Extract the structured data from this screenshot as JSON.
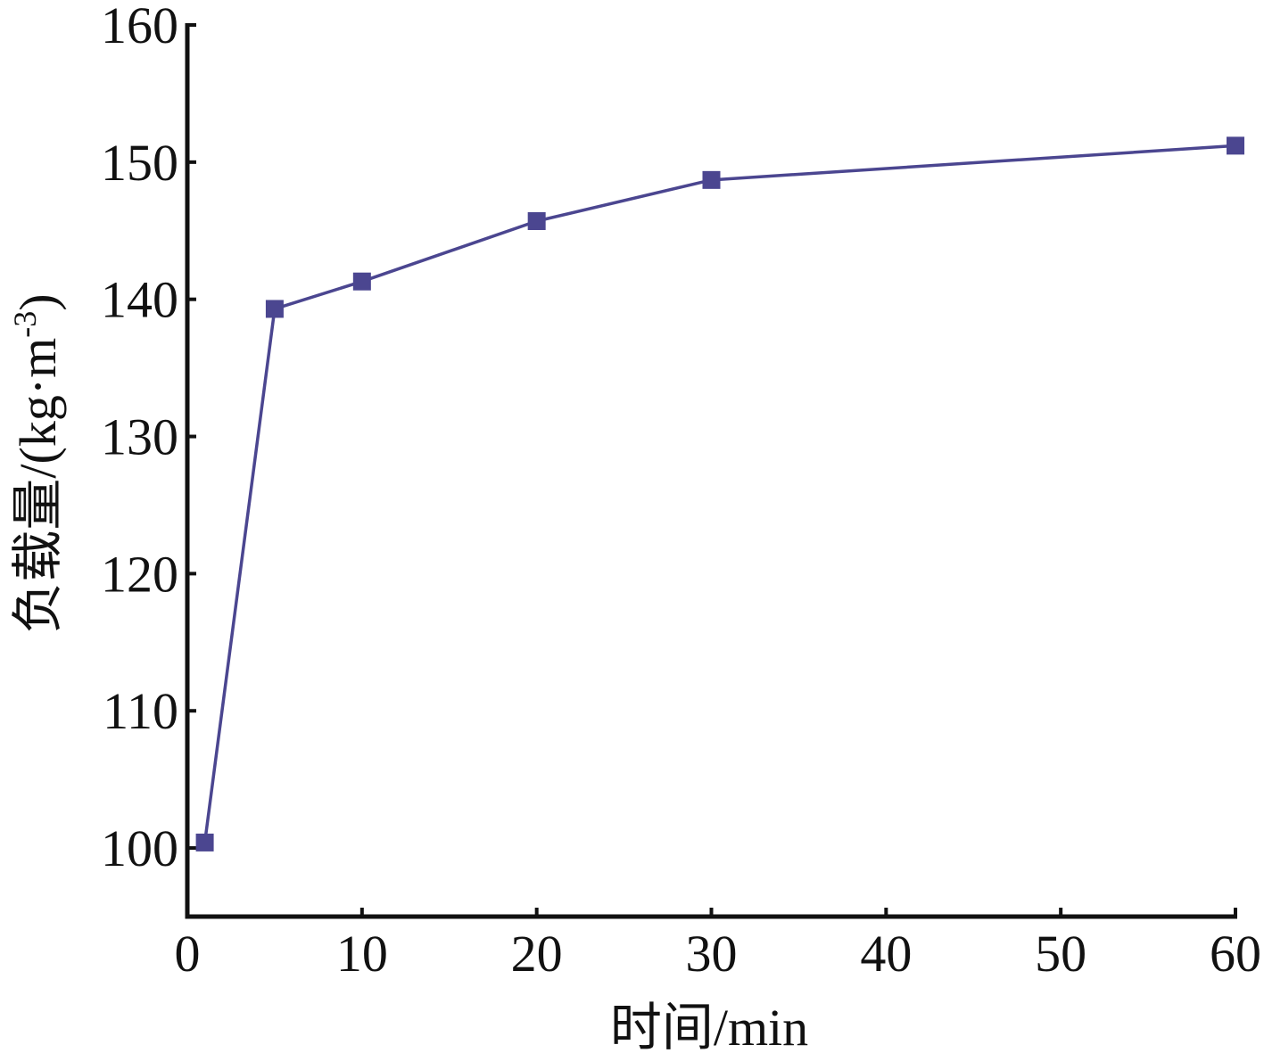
{
  "chart_data": {
    "type": "line",
    "title": "",
    "xlabel": "时间/min",
    "ylabel_prefix": "负载量/(kg·m",
    "ylabel_exp": "-3",
    "ylabel_suffix": ")",
    "xlim": [
      0,
      60
    ],
    "ylim": [
      95,
      160
    ],
    "xticks": [
      0,
      10,
      20,
      30,
      40,
      50,
      60
    ],
    "yticks": [
      100,
      110,
      120,
      130,
      140,
      150,
      160
    ],
    "grid": false,
    "legend": "none",
    "series": [
      {
        "color": "#4b4690",
        "marker": "square",
        "x": [
          1,
          5,
          10,
          20,
          30,
          60
        ],
        "y": [
          100.4,
          139.3,
          141.3,
          145.7,
          148.7,
          151.2
        ]
      }
    ]
  }
}
